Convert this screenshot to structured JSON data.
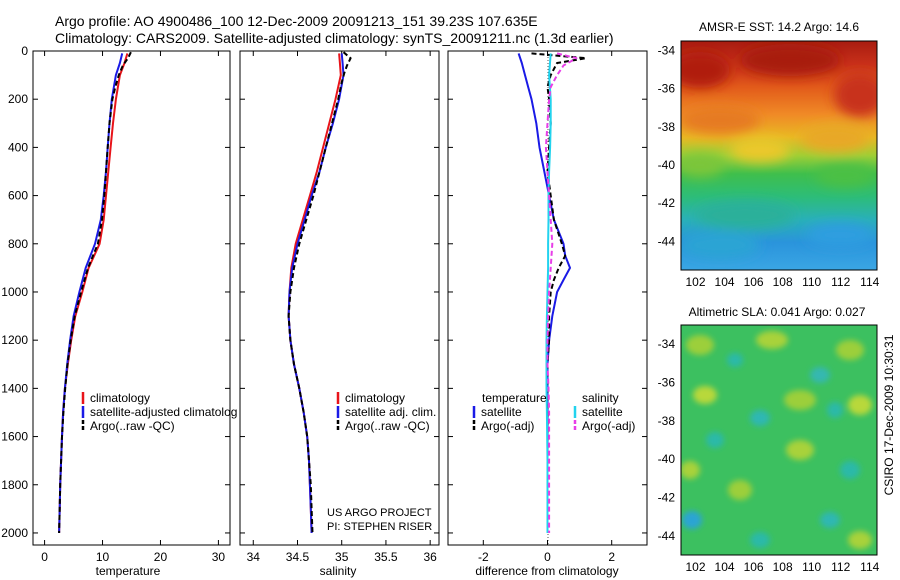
{
  "header": {
    "line1": "Argo profile: AO 4900486_100 12-Dec-2009 20091213_151 39.23S 107.635E",
    "line2": "Climatology: CARS2009. Satellite-adjusted climatology: synTS_20091211.nc (1.3d earlier)"
  },
  "credits": {
    "project": "US ARGO PROJECT",
    "pi": "PI: STEPHEN RISER",
    "stamp": "CSIRO 17-Dec-2009 10:30:31"
  },
  "chart_data": [
    {
      "type": "line",
      "name": "temperature",
      "xlabel": "temperature",
      "xlim": [
        -2,
        32
      ],
      "ylim": [
        0,
        2050
      ],
      "y_reversed": true,
      "xticks": [
        "0",
        "10",
        "20",
        "30"
      ],
      "xtick_values": [
        0,
        10,
        20,
        30
      ],
      "yticks": [
        "0",
        "200",
        "400",
        "600",
        "800",
        "1000",
        "1200",
        "1400",
        "1600",
        "1800",
        "2000"
      ],
      "ytick_values": [
        0,
        200,
        400,
        600,
        800,
        1000,
        1200,
        1400,
        1600,
        1800,
        2000
      ],
      "legend": [
        "climatology",
        "satellite-adjusted climatolog",
        "Argo(..raw -QC)"
      ],
      "series": [
        {
          "name": "climatology",
          "color": "#e8141a",
          "dash": false,
          "depth": [
            10,
            50,
            100,
            200,
            300,
            400,
            500,
            600,
            700,
            800,
            900,
            1000,
            1100,
            1200,
            1300,
            1400,
            1500,
            1600,
            1700,
            1800,
            1900,
            2000
          ],
          "values": [
            14.3,
            13.8,
            13.0,
            12.3,
            11.8,
            11.4,
            11.0,
            10.6,
            10.2,
            9.5,
            7.6,
            6.5,
            5.3,
            4.6,
            4.0,
            3.5,
            3.2,
            3.0,
            2.85,
            2.7,
            2.6,
            2.5
          ]
        },
        {
          "name": "satellite-adjusted climatology",
          "color": "#1a1ae6",
          "dash": false,
          "depth": [
            10,
            50,
            100,
            200,
            300,
            400,
            500,
            600,
            700,
            800,
            900,
            1000,
            1100,
            1200,
            1300,
            1400,
            1500,
            1600,
            1700,
            1800,
            1900,
            2000
          ],
          "values": [
            13.4,
            13.0,
            12.3,
            11.6,
            11.2,
            10.9,
            10.6,
            10.2,
            9.7,
            8.7,
            7.1,
            6.0,
            5.0,
            4.4,
            3.9,
            3.5,
            3.2,
            3.0,
            2.85,
            2.7,
            2.6,
            2.5
          ]
        },
        {
          "name": "Argo(..raw -QC)",
          "color": "#000000",
          "dash": true,
          "depth": [
            5,
            30,
            60,
            100,
            150,
            200,
            300,
            400,
            500,
            600,
            700,
            800,
            900,
            1000,
            1100,
            1200,
            1300,
            1400,
            1500,
            1600,
            1700,
            1800,
            1900,
            2000
          ],
          "values": [
            14.9,
            14.4,
            13.5,
            12.8,
            12.2,
            11.7,
            11.2,
            10.9,
            10.6,
            10.3,
            9.9,
            9.2,
            7.5,
            6.3,
            5.2,
            4.5,
            3.95,
            3.55,
            3.25,
            3.0,
            2.85,
            2.7,
            2.6,
            2.5
          ]
        }
      ]
    },
    {
      "type": "line",
      "name": "salinity",
      "xlabel": "salinity",
      "xlim": [
        33.85,
        36.1
      ],
      "ylim": [
        0,
        2050
      ],
      "y_reversed": true,
      "xticks": [
        "34",
        "34.5",
        "35",
        "35.5",
        "36"
      ],
      "xtick_values": [
        34,
        34.5,
        35,
        35.5,
        36
      ],
      "legend": [
        "climatology",
        "satellite adj. clim.",
        "Argo(..raw -QC)"
      ],
      "series": [
        {
          "name": "climatology",
          "color": "#e8141a",
          "dash": false,
          "depth": [
            10,
            50,
            100,
            200,
            300,
            400,
            500,
            600,
            700,
            800,
            900,
            1000,
            1100,
            1200,
            1300,
            1400,
            1500,
            1600,
            1700,
            1800,
            1900,
            2000
          ],
          "values": [
            34.97,
            34.98,
            34.99,
            34.93,
            34.86,
            34.79,
            34.72,
            34.64,
            34.56,
            34.48,
            34.43,
            34.41,
            34.4,
            34.42,
            34.46,
            34.52,
            34.57,
            34.61,
            34.63,
            34.64,
            34.65,
            34.66
          ]
        },
        {
          "name": "satellite adj. clim.",
          "color": "#1a1ae6",
          "dash": false,
          "depth": [
            10,
            50,
            100,
            200,
            300,
            400,
            500,
            600,
            700,
            800,
            900,
            1000,
            1100,
            1200,
            1300,
            1400,
            1500,
            1600,
            1700,
            1800,
            1900,
            2000
          ],
          "values": [
            35.0,
            35.01,
            35.02,
            34.97,
            34.9,
            34.82,
            34.75,
            34.66,
            34.58,
            34.5,
            34.44,
            34.41,
            34.4,
            34.42,
            34.46,
            34.52,
            34.57,
            34.61,
            34.63,
            34.64,
            34.65,
            34.66
          ]
        },
        {
          "name": "Argo(..raw -QC)",
          "color": "#000000",
          "dash": true,
          "depth": [
            5,
            30,
            60,
            90,
            130,
            200,
            300,
            400,
            500,
            600,
            700,
            800,
            900,
            1000,
            1100,
            1200,
            1300,
            1400,
            1500,
            1600,
            1700,
            1800,
            1900,
            2000
          ],
          "values": [
            35.02,
            35.1,
            35.06,
            35.03,
            35.0,
            34.96,
            34.89,
            34.82,
            34.75,
            34.68,
            34.6,
            34.52,
            34.46,
            34.42,
            34.4,
            34.42,
            34.46,
            34.52,
            34.57,
            34.61,
            34.63,
            34.65,
            34.66,
            34.67
          ]
        }
      ]
    },
    {
      "type": "line",
      "name": "difference",
      "xlabel": "difference from climatology",
      "xlim": [
        -3.1,
        3.1
      ],
      "ylim": [
        0,
        2050
      ],
      "y_reversed": true,
      "xticks": [
        "-2",
        "0",
        "2"
      ],
      "xtick_values": [
        -2,
        0,
        2
      ],
      "legend_headers": [
        "temperature",
        "salinity"
      ],
      "legend": [
        "satellite",
        "Argo(-adj)",
        "satellite",
        "Argo(-adj)"
      ],
      "series": [
        {
          "name": "temperature satellite",
          "color": "#1a1ae6",
          "dash": false,
          "depth": [
            10,
            50,
            100,
            150,
            200,
            300,
            400,
            500,
            600,
            700,
            800,
            850,
            900,
            950,
            1000,
            1100,
            1200,
            1300,
            1400,
            1500,
            1600,
            1700,
            1800,
            1900,
            2000
          ],
          "values": [
            -0.9,
            -0.8,
            -0.7,
            -0.6,
            -0.5,
            -0.35,
            -0.25,
            -0.1,
            0.05,
            0.2,
            0.5,
            0.55,
            0.7,
            0.5,
            0.3,
            0.15,
            0.05,
            0.0,
            0.0,
            0.0,
            0.0,
            0.0,
            0.0,
            0.0,
            0.0
          ]
        },
        {
          "name": "temperature Argo(-adj)",
          "color": "#000000",
          "dash": true,
          "depth": [
            10,
            30,
            50,
            100,
            150,
            200,
            300,
            400,
            500,
            600,
            700,
            800,
            850,
            900,
            950,
            1000,
            1100,
            1200,
            1300,
            1400,
            1500,
            1600,
            1700,
            1800,
            1900,
            2000
          ],
          "values": [
            -0.5,
            1.2,
            0.3,
            0.1,
            0.0,
            0.05,
            0.1,
            0.05,
            0.0,
            0.1,
            0.2,
            0.45,
            0.55,
            0.35,
            0.2,
            0.1,
            0.05,
            0.05,
            0.0,
            0.0,
            0.0,
            0.0,
            0.0,
            0.0,
            0.0,
            0.0
          ]
        },
        {
          "name": "salinity satellite",
          "color": "#22d3ee",
          "dash": false,
          "depth": [
            10,
            100,
            200,
            300,
            400,
            500,
            600,
            700,
            800,
            900,
            1000,
            1100,
            1200,
            1300,
            1400,
            1500,
            1600,
            1700,
            1800,
            1900,
            2000
          ],
          "values": [
            0.1,
            0.05,
            0.1,
            0.1,
            0.08,
            0.05,
            0.03,
            0.03,
            0.02,
            0.02,
            0.0,
            -0.02,
            -0.03,
            -0.03,
            -0.03,
            -0.02,
            -0.01,
            0.0,
            0.0,
            0.0,
            0.0
          ]
        },
        {
          "name": "salinity Argo(-adj)",
          "color": "#e83ee8",
          "dash": true,
          "depth": [
            10,
            30,
            60,
            100,
            150,
            200,
            300,
            400,
            500,
            600,
            700,
            800,
            900,
            1000,
            1100,
            1200,
            1300,
            1400,
            1500,
            1600,
            1700,
            1800,
            1900,
            2000
          ],
          "values": [
            0.3,
            0.9,
            0.5,
            0.3,
            0.1,
            0.05,
            0.0,
            -0.05,
            0.0,
            0.05,
            0.1,
            0.15,
            0.1,
            0.05,
            0.02,
            0.0,
            0.0,
            0.03,
            0.05,
            0.05,
            0.05,
            0.05,
            0.05,
            0.05
          ]
        }
      ]
    },
    {
      "type": "heatmap",
      "name": "sst-map",
      "title": "AMSR-E SST: 14.2  Argo: 14.6",
      "xlim": [
        101,
        114.5
      ],
      "ylim": [
        -45.5,
        -33.5
      ],
      "xticks": [
        "102",
        "104",
        "106",
        "108",
        "110",
        "112",
        "114"
      ],
      "xtick_values": [
        102,
        104,
        106,
        108,
        110,
        112,
        114
      ],
      "yticks": [
        "-34",
        "-36",
        "-38",
        "-40",
        "-42",
        "-44"
      ],
      "ytick_values": [
        -34,
        -36,
        -38,
        -40,
        -42,
        -44
      ],
      "marker": {
        "lon": 107.635,
        "lat": -39.23
      }
    },
    {
      "type": "heatmap",
      "name": "sla-map",
      "title": "Altimetric SLA: 0.041  Argo: 0.027",
      "xlim": [
        101,
        114.5
      ],
      "ylim": [
        -45,
        -33
      ],
      "xticks": [
        "102",
        "104",
        "106",
        "108",
        "110",
        "112",
        "114"
      ],
      "xtick_values": [
        102,
        104,
        106,
        108,
        110,
        112,
        114
      ],
      "yticks": [
        "-34",
        "-36",
        "-38",
        "-40",
        "-42",
        "-44"
      ],
      "ytick_values": [
        -34,
        -36,
        -38,
        -40,
        -42,
        -44
      ],
      "marker": {
        "lon": 107.635,
        "lat": -39.23
      }
    }
  ]
}
